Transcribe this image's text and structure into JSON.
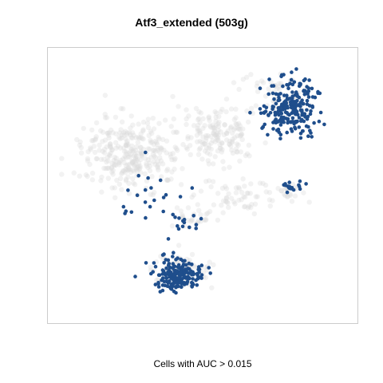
{
  "chart_data": {
    "type": "scatter",
    "title": "Atf3_extended (503g)",
    "caption": "Cells with AUC > 0.015",
    "xlabel": "",
    "ylabel": "",
    "axes_visible": false,
    "grid": false,
    "xlim": [
      0,
      100
    ],
    "ylim": [
      0,
      100
    ],
    "colors": {
      "background_cells": "#d9d9d9",
      "highlighted_cells": "#1f4e8c",
      "panel_border": "#cccccc"
    },
    "series": [
      {
        "role": "all-cells",
        "clusters": [
          {
            "x": 26,
            "y": 38,
            "sx": 15,
            "sy": 12,
            "n": 320
          },
          {
            "x": 55,
            "y": 30,
            "sx": 12,
            "sy": 10,
            "n": 160
          },
          {
            "x": 63,
            "y": 54,
            "sx": 13,
            "sy": 5,
            "n": 60
          },
          {
            "x": 46,
            "y": 62,
            "sx": 7,
            "sy": 4,
            "n": 30
          },
          {
            "x": 43,
            "y": 82,
            "sx": 9,
            "sy": 6,
            "n": 110
          },
          {
            "x": 74,
            "y": 16,
            "sx": 10,
            "sy": 8,
            "n": 60
          },
          {
            "x": 78,
            "y": 52,
            "sx": 5,
            "sy": 3,
            "n": 20
          }
        ]
      },
      {
        "role": "auc-above-threshold",
        "clusters": [
          {
            "x": 79,
            "y": 20,
            "sx": 8,
            "sy": 10,
            "n": 230
          },
          {
            "x": 42,
            "y": 84,
            "sx": 7,
            "sy": 5,
            "n": 200
          },
          {
            "x": 80,
            "y": 50,
            "sx": 3,
            "sy": 2,
            "n": 18
          },
          {
            "x": 31,
            "y": 53,
            "sx": 12,
            "sy": 12,
            "n": 22
          },
          {
            "x": 44,
            "y": 64,
            "sx": 6,
            "sy": 4,
            "n": 14
          }
        ]
      }
    ]
  }
}
